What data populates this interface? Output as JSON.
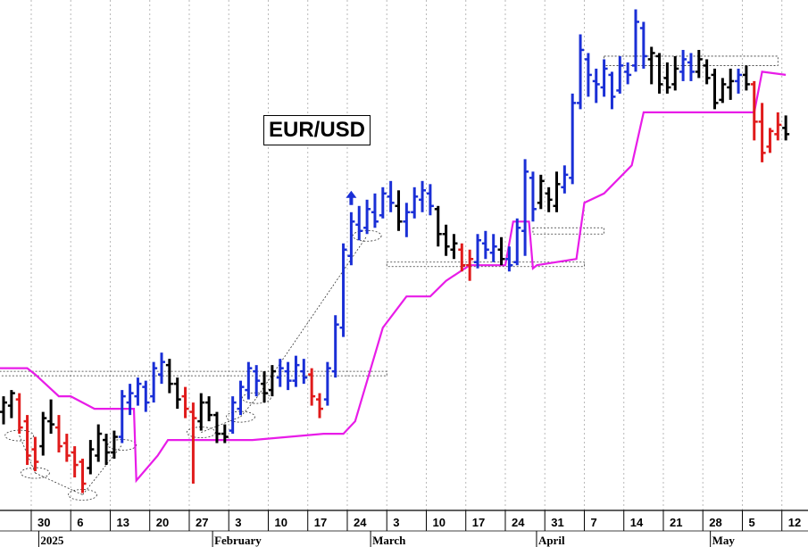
{
  "chart_data": {
    "type": "ohlc",
    "title": "EUR/USD",
    "colors": {
      "up": "#1a2fd6",
      "down": "#e01b1b",
      "neutral": "#000000",
      "stop_line": "#e81ce8",
      "grid": "#b8b8b8"
    },
    "x_tick_labels": [
      "30",
      "6",
      "13",
      "20",
      "27",
      "3",
      "10",
      "17",
      "24",
      "3",
      "10",
      "17",
      "24",
      "31",
      "7",
      "14",
      "21",
      "28",
      "5",
      "12"
    ],
    "x_month_labels": [
      "2025",
      "February",
      "March",
      "April",
      "May"
    ],
    "bars": [
      {
        "x": 0,
        "h": 1.036,
        "l": 1.027,
        "o": 1.031,
        "c": 1.034,
        "color": "neutral"
      },
      {
        "x": 1,
        "h": 1.038,
        "l": 1.029,
        "o": 1.033,
        "c": 1.037,
        "color": "neutral"
      },
      {
        "x": 2,
        "h": 1.037,
        "l": 1.024,
        "o": 1.035,
        "c": 1.026,
        "color": "down"
      },
      {
        "x": 3,
        "h": 1.03,
        "l": 1.014,
        "o": 1.028,
        "c": 1.017,
        "color": "down"
      },
      {
        "x": 4,
        "h": 1.023,
        "l": 1.012,
        "o": 1.019,
        "c": 1.015,
        "color": "down"
      },
      {
        "x": 5,
        "h": 1.031,
        "l": 1.017,
        "o": 1.02,
        "c": 1.029,
        "color": "neutral"
      },
      {
        "x": 6,
        "h": 1.035,
        "l": 1.024,
        "o": 1.028,
        "c": 1.027,
        "color": "neutral"
      },
      {
        "x": 7,
        "h": 1.03,
        "l": 1.018,
        "o": 1.026,
        "c": 1.02,
        "color": "down"
      },
      {
        "x": 8,
        "h": 1.024,
        "l": 1.015,
        "o": 1.021,
        "c": 1.017,
        "color": "down"
      },
      {
        "x": 9,
        "h": 1.02,
        "l": 1.01,
        "o": 1.018,
        "c": 1.014,
        "color": "down"
      },
      {
        "x": 10,
        "h": 1.016,
        "l": 1.005,
        "o": 1.015,
        "c": 1.008,
        "color": "down"
      },
      {
        "x": 11,
        "h": 1.022,
        "l": 1.011,
        "o": 1.013,
        "c": 1.019,
        "color": "neutral"
      },
      {
        "x": 12,
        "h": 1.027,
        "l": 1.015,
        "o": 1.017,
        "c": 1.024,
        "color": "neutral"
      },
      {
        "x": 13,
        "h": 1.024,
        "l": 1.014,
        "o": 1.022,
        "c": 1.018,
        "color": "neutral"
      },
      {
        "x": 14,
        "h": 1.025,
        "l": 1.016,
        "o": 1.018,
        "c": 1.023,
        "color": "neutral"
      },
      {
        "x": 15,
        "h": 1.038,
        "l": 1.021,
        "o": 1.023,
        "c": 1.036,
        "color": "up"
      },
      {
        "x": 16,
        "h": 1.04,
        "l": 1.03,
        "o": 1.034,
        "c": 1.037,
        "color": "up"
      },
      {
        "x": 17,
        "h": 1.042,
        "l": 1.033,
        "o": 1.036,
        "c": 1.04,
        "color": "up"
      },
      {
        "x": 18,
        "h": 1.041,
        "l": 1.031,
        "o": 1.039,
        "c": 1.034,
        "color": "up"
      },
      {
        "x": 19,
        "h": 1.047,
        "l": 1.034,
        "o": 1.036,
        "c": 1.045,
        "color": "up"
      },
      {
        "x": 20,
        "h": 1.05,
        "l": 1.04,
        "o": 1.043,
        "c": 1.047,
        "color": "up"
      },
      {
        "x": 21,
        "h": 1.048,
        "l": 1.037,
        "o": 1.046,
        "c": 1.04,
        "color": "neutral"
      },
      {
        "x": 22,
        "h": 1.042,
        "l": 1.032,
        "o": 1.04,
        "c": 1.035,
        "color": "neutral"
      },
      {
        "x": 23,
        "h": 1.039,
        "l": 1.029,
        "o": 1.036,
        "c": 1.032,
        "color": "down"
      },
      {
        "x": 24,
        "h": 1.034,
        "l": 1.008,
        "o": 1.031,
        "c": 1.029,
        "color": "down"
      },
      {
        "x": 25,
        "h": 1.037,
        "l": 1.025,
        "o": 1.028,
        "c": 1.034,
        "color": "neutral"
      },
      {
        "x": 26,
        "h": 1.036,
        "l": 1.028,
        "o": 1.034,
        "c": 1.03,
        "color": "neutral"
      },
      {
        "x": 27,
        "h": 1.031,
        "l": 1.021,
        "o": 1.03,
        "c": 1.024,
        "color": "neutral"
      },
      {
        "x": 28,
        "h": 1.027,
        "l": 1.021,
        "o": 1.024,
        "c": 1.023,
        "color": "neutral"
      },
      {
        "x": 29,
        "h": 1.036,
        "l": 1.024,
        "o": 1.025,
        "c": 1.034,
        "color": "up"
      },
      {
        "x": 30,
        "h": 1.041,
        "l": 1.03,
        "o": 1.032,
        "c": 1.039,
        "color": "up"
      },
      {
        "x": 31,
        "h": 1.047,
        "l": 1.035,
        "o": 1.038,
        "c": 1.045,
        "color": "up"
      },
      {
        "x": 32,
        "h": 1.046,
        "l": 1.036,
        "o": 1.044,
        "c": 1.041,
        "color": "up"
      },
      {
        "x": 33,
        "h": 1.044,
        "l": 1.034,
        "o": 1.04,
        "c": 1.037,
        "color": "neutral"
      },
      {
        "x": 34,
        "h": 1.046,
        "l": 1.036,
        "o": 1.038,
        "c": 1.044,
        "color": "neutral"
      },
      {
        "x": 35,
        "h": 1.048,
        "l": 1.039,
        "o": 1.042,
        "c": 1.045,
        "color": "up"
      },
      {
        "x": 36,
        "h": 1.047,
        "l": 1.038,
        "o": 1.044,
        "c": 1.041,
        "color": "up"
      },
      {
        "x": 37,
        "h": 1.049,
        "l": 1.039,
        "o": 1.041,
        "c": 1.046,
        "color": "up"
      },
      {
        "x": 38,
        "h": 1.048,
        "l": 1.04,
        "o": 1.044,
        "c": 1.042,
        "color": "up"
      },
      {
        "x": 39,
        "h": 1.045,
        "l": 1.033,
        "o": 1.043,
        "c": 1.036,
        "color": "down"
      },
      {
        "x": 40,
        "h": 1.037,
        "l": 1.029,
        "o": 1.035,
        "c": 1.032,
        "color": "down"
      },
      {
        "x": 41,
        "h": 1.047,
        "l": 1.033,
        "o": 1.035,
        "c": 1.045,
        "color": "up"
      },
      {
        "x": 42,
        "h": 1.062,
        "l": 1.042,
        "o": 1.044,
        "c": 1.059,
        "color": "up"
      },
      {
        "x": 43,
        "h": 1.085,
        "l": 1.055,
        "o": 1.058,
        "c": 1.083,
        "color": "up"
      },
      {
        "x": 44,
        "h": 1.095,
        "l": 1.078,
        "o": 1.081,
        "c": 1.092,
        "color": "up"
      },
      {
        "x": 45,
        "h": 1.097,
        "l": 1.086,
        "o": 1.091,
        "c": 1.089,
        "color": "up"
      },
      {
        "x": 46,
        "h": 1.099,
        "l": 1.088,
        "o": 1.09,
        "c": 1.096,
        "color": "up"
      },
      {
        "x": 47,
        "h": 1.101,
        "l": 1.09,
        "o": 1.095,
        "c": 1.092,
        "color": "up"
      },
      {
        "x": 48,
        "h": 1.103,
        "l": 1.093,
        "o": 1.094,
        "c": 1.101,
        "color": "up"
      },
      {
        "x": 49,
        "h": 1.105,
        "l": 1.095,
        "o": 1.1,
        "c": 1.098,
        "color": "up"
      },
      {
        "x": 50,
        "h": 1.102,
        "l": 1.089,
        "o": 1.097,
        "c": 1.092,
        "color": "neutral"
      },
      {
        "x": 51,
        "h": 1.098,
        "l": 1.087,
        "o": 1.092,
        "c": 1.095,
        "color": "up"
      },
      {
        "x": 52,
        "h": 1.103,
        "l": 1.093,
        "o": 1.095,
        "c": 1.1,
        "color": "up"
      },
      {
        "x": 53,
        "h": 1.105,
        "l": 1.095,
        "o": 1.099,
        "c": 1.102,
        "color": "up"
      },
      {
        "x": 54,
        "h": 1.104,
        "l": 1.094,
        "o": 1.101,
        "c": 1.097,
        "color": "up"
      },
      {
        "x": 55,
        "h": 1.097,
        "l": 1.084,
        "o": 1.096,
        "c": 1.088,
        "color": "neutral"
      },
      {
        "x": 56,
        "h": 1.091,
        "l": 1.081,
        "o": 1.088,
        "c": 1.084,
        "color": "neutral"
      },
      {
        "x": 57,
        "h": 1.088,
        "l": 1.08,
        "o": 1.083,
        "c": 1.085,
        "color": "neutral"
      },
      {
        "x": 58,
        "h": 1.085,
        "l": 1.076,
        "o": 1.083,
        "c": 1.078,
        "color": "down"
      },
      {
        "x": 59,
        "h": 1.083,
        "l": 1.073,
        "o": 1.078,
        "c": 1.08,
        "color": "down"
      },
      {
        "x": 60,
        "h": 1.088,
        "l": 1.077,
        "o": 1.079,
        "c": 1.086,
        "color": "up"
      },
      {
        "x": 61,
        "h": 1.089,
        "l": 1.08,
        "o": 1.085,
        "c": 1.083,
        "color": "up"
      },
      {
        "x": 62,
        "h": 1.088,
        "l": 1.079,
        "o": 1.082,
        "c": 1.084,
        "color": "up"
      },
      {
        "x": 63,
        "h": 1.087,
        "l": 1.078,
        "o": 1.083,
        "c": 1.08,
        "color": "neutral"
      },
      {
        "x": 64,
        "h": 1.084,
        "l": 1.076,
        "o": 1.08,
        "c": 1.078,
        "color": "up"
      },
      {
        "x": 65,
        "h": 1.093,
        "l": 1.078,
        "o": 1.079,
        "c": 1.09,
        "color": "up"
      },
      {
        "x": 66,
        "h": 1.112,
        "l": 1.081,
        "o": 1.089,
        "c": 1.108,
        "color": "up"
      },
      {
        "x": 67,
        "h": 1.108,
        "l": 1.092,
        "o": 1.106,
        "c": 1.096,
        "color": "up"
      },
      {
        "x": 68,
        "h": 1.107,
        "l": 1.096,
        "o": 1.098,
        "c": 1.105,
        "color": "neutral"
      },
      {
        "x": 69,
        "h": 1.103,
        "l": 1.095,
        "o": 1.101,
        "c": 1.099,
        "color": "neutral"
      },
      {
        "x": 70,
        "h": 1.108,
        "l": 1.095,
        "o": 1.097,
        "c": 1.104,
        "color": "neutral"
      },
      {
        "x": 71,
        "h": 1.11,
        "l": 1.101,
        "o": 1.103,
        "c": 1.107,
        "color": "up"
      },
      {
        "x": 72,
        "h": 1.133,
        "l": 1.104,
        "o": 1.106,
        "c": 1.13,
        "color": "up"
      },
      {
        "x": 73,
        "h": 1.152,
        "l": 1.128,
        "o": 1.13,
        "c": 1.147,
        "color": "up"
      },
      {
        "x": 74,
        "h": 1.146,
        "l": 1.132,
        "o": 1.144,
        "c": 1.139,
        "color": "up"
      },
      {
        "x": 75,
        "h": 1.141,
        "l": 1.13,
        "o": 1.137,
        "c": 1.136,
        "color": "up"
      },
      {
        "x": 76,
        "h": 1.144,
        "l": 1.132,
        "o": 1.135,
        "c": 1.141,
        "color": "up"
      },
      {
        "x": 77,
        "h": 1.14,
        "l": 1.128,
        "o": 1.139,
        "c": 1.132,
        "color": "up"
      },
      {
        "x": 78,
        "h": 1.145,
        "l": 1.133,
        "o": 1.134,
        "c": 1.142,
        "color": "up"
      },
      {
        "x": 79,
        "h": 1.143,
        "l": 1.136,
        "o": 1.14,
        "c": 1.139,
        "color": "up"
      },
      {
        "x": 80,
        "h": 1.16,
        "l": 1.14,
        "o": 1.142,
        "c": 1.156,
        "color": "up"
      },
      {
        "x": 81,
        "h": 1.156,
        "l": 1.141,
        "o": 1.154,
        "c": 1.145,
        "color": "up"
      },
      {
        "x": 82,
        "h": 1.148,
        "l": 1.136,
        "o": 1.144,
        "c": 1.146,
        "color": "neutral"
      },
      {
        "x": 83,
        "h": 1.146,
        "l": 1.133,
        "o": 1.145,
        "c": 1.136,
        "color": "neutral"
      },
      {
        "x": 84,
        "h": 1.143,
        "l": 1.133,
        "o": 1.138,
        "c": 1.135,
        "color": "neutral"
      },
      {
        "x": 85,
        "h": 1.145,
        "l": 1.134,
        "o": 1.136,
        "c": 1.141,
        "color": "neutral"
      },
      {
        "x": 86,
        "h": 1.147,
        "l": 1.137,
        "o": 1.14,
        "c": 1.144,
        "color": "up"
      },
      {
        "x": 87,
        "h": 1.146,
        "l": 1.137,
        "o": 1.143,
        "c": 1.14,
        "color": "up"
      },
      {
        "x": 88,
        "h": 1.147,
        "l": 1.138,
        "o": 1.14,
        "c": 1.144,
        "color": "neutral"
      },
      {
        "x": 89,
        "h": 1.144,
        "l": 1.136,
        "o": 1.142,
        "c": 1.138,
        "color": "neutral"
      },
      {
        "x": 90,
        "h": 1.141,
        "l": 1.128,
        "o": 1.139,
        "c": 1.13,
        "color": "neutral"
      },
      {
        "x": 91,
        "h": 1.138,
        "l": 1.13,
        "o": 1.131,
        "c": 1.136,
        "color": "neutral"
      },
      {
        "x": 92,
        "h": 1.141,
        "l": 1.131,
        "o": 1.135,
        "c": 1.137,
        "color": "neutral"
      },
      {
        "x": 93,
        "h": 1.141,
        "l": 1.133,
        "o": 1.137,
        "c": 1.139,
        "color": "up"
      },
      {
        "x": 94,
        "h": 1.142,
        "l": 1.134,
        "o": 1.139,
        "c": 1.136,
        "color": "neutral"
      },
      {
        "x": 95,
        "h": 1.137,
        "l": 1.118,
        "o": 1.136,
        "c": 1.124,
        "color": "down"
      },
      {
        "x": 96,
        "h": 1.13,
        "l": 1.111,
        "o": 1.124,
        "c": 1.114,
        "color": "down"
      },
      {
        "x": 97,
        "h": 1.122,
        "l": 1.114,
        "o": 1.116,
        "c": 1.121,
        "color": "down"
      },
      {
        "x": 98,
        "h": 1.127,
        "l": 1.118,
        "o": 1.12,
        "c": 1.123,
        "color": "down"
      },
      {
        "x": 99,
        "h": 1.126,
        "l": 1.118,
        "o": 1.122,
        "c": 1.12,
        "color": "neutral"
      }
    ],
    "stop_line": [
      [
        -0.5,
        1.045
      ],
      [
        3.0,
        1.045
      ],
      [
        4.0,
        1.043
      ],
      [
        7.0,
        1.036
      ],
      [
        8.5,
        1.036
      ],
      [
        11.5,
        1.032
      ],
      [
        16.5,
        1.032
      ],
      [
        16.8,
        1.009
      ],
      [
        19.5,
        1.017
      ],
      [
        20.8,
        1.022
      ],
      [
        31.5,
        1.022
      ],
      [
        40.5,
        1.024
      ],
      [
        43.0,
        1.024
      ],
      [
        44.5,
        1.028
      ],
      [
        48.0,
        1.058
      ],
      [
        51.0,
        1.068
      ],
      [
        54.0,
        1.068
      ],
      [
        56.0,
        1.073
      ],
      [
        59.0,
        1.078
      ],
      [
        63.5,
        1.078
      ],
      [
        64.5,
        1.092
      ],
      [
        66.5,
        1.092
      ],
      [
        67.0,
        1.077
      ],
      [
        67.5,
        1.078
      ],
      [
        70.0,
        1.079
      ],
      [
        72.5,
        1.08
      ],
      [
        73.5,
        1.098
      ],
      [
        76.0,
        1.101
      ],
      [
        79.5,
        1.11
      ],
      [
        81.0,
        1.127
      ],
      [
        94.0,
        1.127
      ],
      [
        95.0,
        1.127
      ],
      [
        96.0,
        1.14
      ],
      [
        99.0,
        1.139
      ]
    ],
    "resistance_boxes": [
      {
        "x0": -0.5,
        "x1": 48.5,
        "y0": 1.044,
        "y1": 1.043
      },
      {
        "x0": 48.5,
        "x1": 73.5,
        "y0": 1.079,
        "y1": 1.078
      },
      {
        "x0": 67.0,
        "x1": 76.0,
        "y0": 1.09,
        "y1": 1.088
      },
      {
        "x0": 76.0,
        "x1": 98.0,
        "y0": 1.145,
        "y1": 1.142
      }
    ],
    "low_ellipses": [
      2,
      4,
      10,
      15,
      25,
      30,
      32,
      46
    ],
    "signal_arrow_x": 44
  }
}
